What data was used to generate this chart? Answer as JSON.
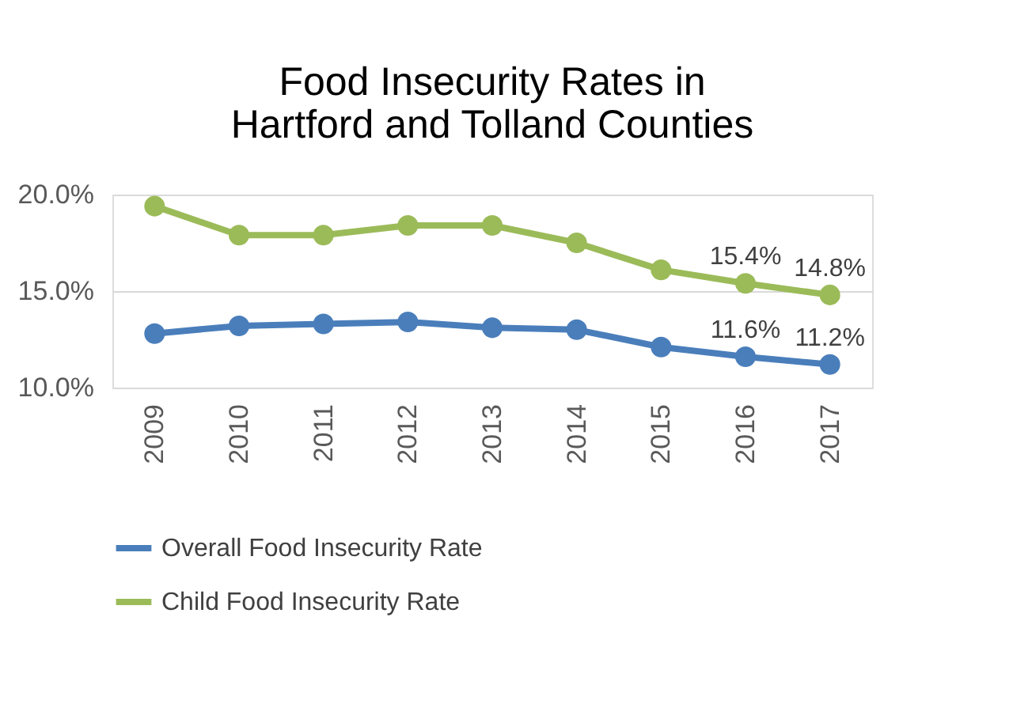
{
  "chart_data": {
    "type": "line",
    "title": "Food Insecurity Rates in\nHartford and Tolland Counties",
    "categories": [
      "2009",
      "2010",
      "2011",
      "2012",
      "2013",
      "2014",
      "2015",
      "2016",
      "2017"
    ],
    "series": [
      {
        "name": "Overall Food Insecurity Rate",
        "color": "#4a7ebb",
        "values": [
          12.8,
          13.2,
          13.3,
          13.4,
          13.1,
          13.0,
          12.1,
          11.6,
          11.2
        ],
        "value_labels": [
          null,
          null,
          null,
          null,
          null,
          null,
          null,
          "11.6%",
          "11.2%"
        ]
      },
      {
        "name": "Child Food Insecurity Rate",
        "color": "#9bbb59",
        "values": [
          19.4,
          17.9,
          17.9,
          18.4,
          18.4,
          17.5,
          16.1,
          15.4,
          14.8
        ],
        "value_labels": [
          null,
          null,
          null,
          null,
          null,
          null,
          null,
          "15.4%",
          "14.8%"
        ]
      }
    ],
    "ylim": [
      10,
      20
    ],
    "yticks": [
      {
        "value": 10,
        "label": "10.0%"
      },
      {
        "value": 15,
        "label": "15.0%"
      },
      {
        "value": 20,
        "label": "20.0%"
      }
    ],
    "grid": "y",
    "legend": "bottom",
    "marker": "circle",
    "line_style": "solid"
  }
}
